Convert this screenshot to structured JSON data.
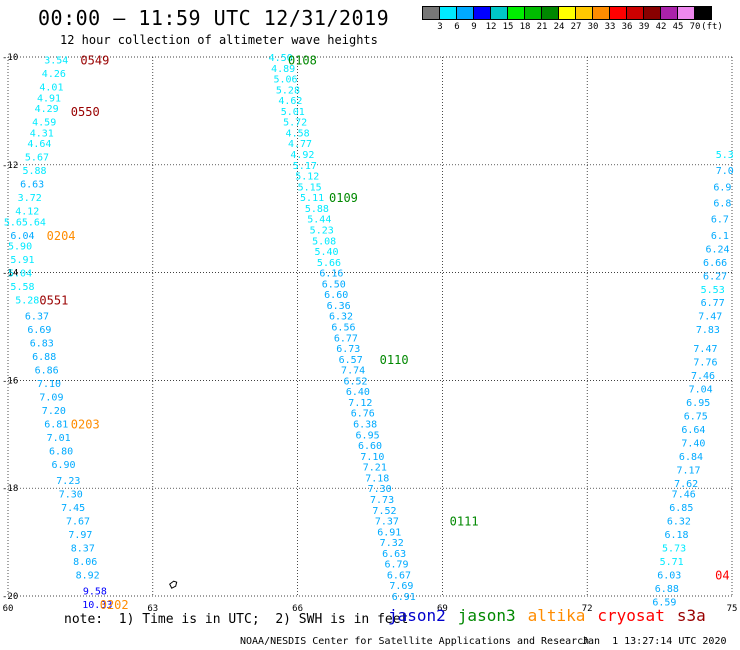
{
  "header": {
    "title": "00:00 – 11:59 UTC 12/31/2019",
    "subtitle": "12 hour collection of altimeter wave heights"
  },
  "colorbar": {
    "colors": [
      "#777777",
      "#00eaff",
      "#00aaff",
      "#0000ff",
      "#00c8c8",
      "#00ee00",
      "#00bb00",
      "#008800",
      "#ffff00",
      "#ffc800",
      "#ff8c00",
      "#ff0000",
      "#cc0000",
      "#880000",
      "#aa22aa",
      "#ee88ee",
      "#000000"
    ],
    "labels": [
      "3",
      "6",
      "9",
      "12",
      "15",
      "18",
      "21",
      "24",
      "27",
      "30",
      "33",
      "36",
      "39",
      "42",
      "45",
      "70",
      "(ft)"
    ]
  },
  "footer": {
    "note": "note:  1) Time is in UTC;  2) SWH is in feet",
    "credit": "NOAA/NESDIS Center for Satellite Applications and Research",
    "timestamp": "Jan  1 13:27:14 UTC 2020",
    "legend": [
      {
        "name": "jason2",
        "color": "#0000cc"
      },
      {
        "name": "jason3",
        "color": "#008800"
      },
      {
        "name": "altika",
        "color": "#ff8c00"
      },
      {
        "name": "cryosat",
        "color": "#ff0000"
      },
      {
        "name": "s3a",
        "color": "#990000"
      }
    ]
  },
  "chart_data": {
    "type": "scatter",
    "xlim": [
      60,
      75
    ],
    "ylim": [
      -20,
      -10
    ],
    "x_ticks": [
      60,
      63,
      66,
      69,
      72,
      75
    ],
    "y_ticks": [
      -10,
      -12,
      -14,
      -16,
      -18,
      -20
    ],
    "x_tick_labels": [
      "60",
      "63",
      "66",
      "69",
      "72",
      "75"
    ],
    "y_tick_labels": [
      "-10",
      "-12",
      "-14",
      "-16",
      "-18",
      "-20"
    ],
    "grid": true,
    "color_scale": {
      "ranges": [
        [
          0,
          3,
          "#777777"
        ],
        [
          3,
          6,
          "#00eaff"
        ],
        [
          6,
          9,
          "#00aaff"
        ],
        [
          9,
          12,
          "#0000ff"
        ],
        [
          12,
          15,
          "#00c8c8"
        ]
      ]
    },
    "tracks": [
      {
        "name": "left descending track",
        "points": [
          {
            "x": 61.0,
            "y": -10.05,
            "v": "3.54"
          },
          {
            "x": 60.95,
            "y": -10.3,
            "v": "4.26"
          },
          {
            "x": 60.9,
            "y": -10.55,
            "v": "4.01"
          },
          {
            "x": 60.85,
            "y": -10.75,
            "v": "4.91"
          },
          {
            "x": 60.8,
            "y": -10.95,
            "v": "4.29"
          },
          {
            "x": 60.75,
            "y": -11.2,
            "v": "4.59"
          },
          {
            "x": 60.7,
            "y": -11.4,
            "v": "4.31"
          },
          {
            "x": 60.65,
            "y": -11.6,
            "v": "4.64"
          },
          {
            "x": 60.6,
            "y": -11.85,
            "v": "5.67"
          },
          {
            "x": 60.55,
            "y": -12.1,
            "v": "5.88"
          },
          {
            "x": 60.5,
            "y": -12.35,
            "v": "6.63"
          },
          {
            "x": 60.45,
            "y": -12.6,
            "v": "3.72"
          },
          {
            "x": 60.4,
            "y": -12.85,
            "v": "4.12"
          },
          {
            "x": 60.35,
            "y": -13.05,
            "v": "5.65.64"
          },
          {
            "x": 60.3,
            "y": -13.3,
            "v": "6.04"
          },
          {
            "x": 60.25,
            "y": -13.5,
            "v": "5.90"
          },
          {
            "x": 60.3,
            "y": -13.75,
            "v": "5.91"
          },
          {
            "x": 60.25,
            "y": -14.0,
            "v": "5.04"
          },
          {
            "x": 60.3,
            "y": -14.25,
            "v": "5.58"
          },
          {
            "x": 60.4,
            "y": -14.5,
            "v": "5.28"
          },
          {
            "x": 60.6,
            "y": -14.8,
            "v": "6.37"
          },
          {
            "x": 60.65,
            "y": -15.05,
            "v": "6.69"
          },
          {
            "x": 60.7,
            "y": -15.3,
            "v": "6.83"
          },
          {
            "x": 60.75,
            "y": -15.55,
            "v": "6.88"
          },
          {
            "x": 60.8,
            "y": -15.8,
            "v": "6.86"
          },
          {
            "x": 60.85,
            "y": -16.05,
            "v": "7.10"
          },
          {
            "x": 60.9,
            "y": -16.3,
            "v": "7.09"
          },
          {
            "x": 60.95,
            "y": -16.55,
            "v": "7.20"
          },
          {
            "x": 61.0,
            "y": -16.8,
            "v": "6.81"
          },
          {
            "x": 61.05,
            "y": -17.05,
            "v": "7.01"
          },
          {
            "x": 61.1,
            "y": -17.3,
            "v": "6.80"
          },
          {
            "x": 61.15,
            "y": -17.55,
            "v": "6.90"
          },
          {
            "x": 61.25,
            "y": -17.85,
            "v": "7.23"
          },
          {
            "x": 61.3,
            "y": -18.1,
            "v": "7.30"
          },
          {
            "x": 61.35,
            "y": -18.35,
            "v": "7.45"
          },
          {
            "x": 61.45,
            "y": -18.6,
            "v": "7.67"
          },
          {
            "x": 61.5,
            "y": -18.85,
            "v": "7.97"
          },
          {
            "x": 61.55,
            "y": -19.1,
            "v": "8.37"
          },
          {
            "x": 61.6,
            "y": -19.35,
            "v": "8.06"
          },
          {
            "x": 61.65,
            "y": -19.6,
            "v": "8.92"
          },
          {
            "x": 61.8,
            "y": -19.9,
            "v": "9.58"
          },
          {
            "x": 61.85,
            "y": -20.15,
            "v": "10.33"
          }
        ]
      },
      {
        "name": "center descending track",
        "points": [
          {
            "x": 65.65,
            "y": -10.0,
            "v": "4.50"
          },
          {
            "x": 65.7,
            "y": -10.2,
            "v": "4.89"
          },
          {
            "x": 65.75,
            "y": -10.4,
            "v": "5.06"
          },
          {
            "x": 65.8,
            "y": -10.6,
            "v": "5.28"
          },
          {
            "x": 65.85,
            "y": -10.8,
            "v": "4.62"
          },
          {
            "x": 65.9,
            "y": -11.0,
            "v": "5.01"
          },
          {
            "x": 65.95,
            "y": -11.2,
            "v": "5.72"
          },
          {
            "x": 66.0,
            "y": -11.4,
            "v": "4.58"
          },
          {
            "x": 66.05,
            "y": -11.6,
            "v": "4.77"
          },
          {
            "x": 66.1,
            "y": -11.8,
            "v": "4.92"
          },
          {
            "x": 66.15,
            "y": -12.0,
            "v": "5.17"
          },
          {
            "x": 66.2,
            "y": -12.2,
            "v": "5.12"
          },
          {
            "x": 66.25,
            "y": -12.4,
            "v": "5.15"
          },
          {
            "x": 66.3,
            "y": -12.6,
            "v": "5.11"
          },
          {
            "x": 66.4,
            "y": -12.8,
            "v": "5.88"
          },
          {
            "x": 66.45,
            "y": -13.0,
            "v": "5.44"
          },
          {
            "x": 66.5,
            "y": -13.2,
            "v": "5.23"
          },
          {
            "x": 66.55,
            "y": -13.4,
            "v": "5.08"
          },
          {
            "x": 66.6,
            "y": -13.6,
            "v": "5.40"
          },
          {
            "x": 66.65,
            "y": -13.8,
            "v": "5.66"
          },
          {
            "x": 66.7,
            "y": -14.0,
            "v": "6.16"
          },
          {
            "x": 66.75,
            "y": -14.2,
            "v": "6.50"
          },
          {
            "x": 66.8,
            "y": -14.4,
            "v": "6.60"
          },
          {
            "x": 66.85,
            "y": -14.6,
            "v": "6.36"
          },
          {
            "x": 66.9,
            "y": -14.8,
            "v": "6.32"
          },
          {
            "x": 66.95,
            "y": -15.0,
            "v": "6.56"
          },
          {
            "x": 67.0,
            "y": -15.2,
            "v": "6.77"
          },
          {
            "x": 67.05,
            "y": -15.4,
            "v": "6.73"
          },
          {
            "x": 67.1,
            "y": -15.6,
            "v": "6.57"
          },
          {
            "x": 67.15,
            "y": -15.8,
            "v": "7.74"
          },
          {
            "x": 67.2,
            "y": -16.0,
            "v": "6.52"
          },
          {
            "x": 67.25,
            "y": -16.2,
            "v": "6.40"
          },
          {
            "x": 67.3,
            "y": -16.4,
            "v": "7.12"
          },
          {
            "x": 67.35,
            "y": -16.6,
            "v": "6.76"
          },
          {
            "x": 67.4,
            "y": -16.8,
            "v": "6.38"
          },
          {
            "x": 67.45,
            "y": -17.0,
            "v": "6.95"
          },
          {
            "x": 67.5,
            "y": -17.2,
            "v": "6.60"
          },
          {
            "x": 67.55,
            "y": -17.4,
            "v": "7.10"
          },
          {
            "x": 67.6,
            "y": -17.6,
            "v": "7.21"
          },
          {
            "x": 67.65,
            "y": -17.8,
            "v": "7.18"
          },
          {
            "x": 67.7,
            "y": -18.0,
            "v": "7.30"
          },
          {
            "x": 67.75,
            "y": -18.2,
            "v": "7.73"
          },
          {
            "x": 67.8,
            "y": -18.4,
            "v": "7.52"
          },
          {
            "x": 67.85,
            "y": -18.6,
            "v": "7.37"
          },
          {
            "x": 67.9,
            "y": -18.8,
            "v": "6.91"
          },
          {
            "x": 67.95,
            "y": -19.0,
            "v": "7.32"
          },
          {
            "x": 68.0,
            "y": -19.2,
            "v": "6.63"
          },
          {
            "x": 68.05,
            "y": -19.4,
            "v": "6.79"
          },
          {
            "x": 68.1,
            "y": -19.6,
            "v": "6.67"
          },
          {
            "x": 68.15,
            "y": -19.8,
            "v": "7.69"
          },
          {
            "x": 68.2,
            "y": -20.0,
            "v": "6.91"
          }
        ]
      },
      {
        "name": "right edge track",
        "points": [
          {
            "x": 74.85,
            "y": -11.8,
            "v": "5.3"
          },
          {
            "x": 74.85,
            "y": -12.1,
            "v": "7.0"
          },
          {
            "x": 74.8,
            "y": -12.4,
            "v": "6.9"
          },
          {
            "x": 74.8,
            "y": -12.7,
            "v": "6.8"
          },
          {
            "x": 74.75,
            "y": -13.0,
            "v": "6.7"
          },
          {
            "x": 74.75,
            "y": -13.3,
            "v": "6.1"
          },
          {
            "x": 74.7,
            "y": -13.55,
            "v": "6.24"
          },
          {
            "x": 74.65,
            "y": -13.8,
            "v": "6.66"
          },
          {
            "x": 74.65,
            "y": -14.05,
            "v": "6.27"
          },
          {
            "x": 74.6,
            "y": -14.3,
            "v": "5.53"
          },
          {
            "x": 74.6,
            "y": -14.55,
            "v": "6.77"
          },
          {
            "x": 74.55,
            "y": -14.8,
            "v": "7.47"
          },
          {
            "x": 74.5,
            "y": -15.05,
            "v": "7.83"
          },
          {
            "x": 74.45,
            "y": -15.4,
            "v": "7.47"
          },
          {
            "x": 74.45,
            "y": -15.65,
            "v": "7.76"
          },
          {
            "x": 74.4,
            "y": -15.9,
            "v": "7.46"
          },
          {
            "x": 74.35,
            "y": -16.15,
            "v": "7.04"
          },
          {
            "x": 74.3,
            "y": -16.4,
            "v": "6.95"
          },
          {
            "x": 74.25,
            "y": -16.65,
            "v": "6.75"
          },
          {
            "x": 74.2,
            "y": -16.9,
            "v": "6.64"
          },
          {
            "x": 74.2,
            "y": -17.15,
            "v": "7.40"
          },
          {
            "x": 74.15,
            "y": -17.4,
            "v": "6.84"
          },
          {
            "x": 74.1,
            "y": -17.65,
            "v": "7.17"
          },
          {
            "x": 74.05,
            "y": -17.9,
            "v": "7.62"
          },
          {
            "x": 74.0,
            "y": -18.1,
            "v": "7.46"
          },
          {
            "x": 73.95,
            "y": -18.35,
            "v": "6.85"
          },
          {
            "x": 73.9,
            "y": -18.6,
            "v": "6.32"
          },
          {
            "x": 73.85,
            "y": -18.85,
            "v": "6.18"
          },
          {
            "x": 73.8,
            "y": -19.1,
            "v": "5.73"
          },
          {
            "x": 73.75,
            "y": -19.35,
            "v": "5.71"
          },
          {
            "x": 73.7,
            "y": -19.6,
            "v": "6.03"
          },
          {
            "x": 73.65,
            "y": -19.85,
            "v": "6.88"
          },
          {
            "x": 73.6,
            "y": -20.1,
            "v": "6.59"
          }
        ]
      }
    ],
    "time_labels": [
      {
        "x": 61.8,
        "y": -10.05,
        "text": "0549",
        "satellite": "s3a",
        "color": "#990000"
      },
      {
        "x": 61.6,
        "y": -11.0,
        "text": "0550",
        "satellite": "s3a",
        "color": "#990000"
      },
      {
        "x": 61.1,
        "y": -13.3,
        "text": "0204",
        "satellite": "altika",
        "color": "#ff8c00"
      },
      {
        "x": 60.95,
        "y": -14.5,
        "text": "0551",
        "satellite": "s3a",
        "color": "#990000"
      },
      {
        "x": 61.6,
        "y": -16.8,
        "text": "0203",
        "satellite": "altika",
        "color": "#ff8c00"
      },
      {
        "x": 62.2,
        "y": -20.15,
        "text": "0202",
        "satellite": "altika",
        "color": "#ff8c00"
      },
      {
        "x": 66.1,
        "y": -10.05,
        "text": "0108",
        "satellite": "jason3",
        "color": "#008800"
      },
      {
        "x": 66.95,
        "y": -12.6,
        "text": "0109",
        "satellite": "jason3",
        "color": "#008800"
      },
      {
        "x": 68.0,
        "y": -15.6,
        "text": "0110",
        "satellite": "jason3",
        "color": "#008800"
      },
      {
        "x": 69.45,
        "y": -18.6,
        "text": "0111",
        "satellite": "jason3",
        "color": "#008800"
      },
      {
        "x": 74.8,
        "y": -19.6,
        "text": "04",
        "satellite": "cryosat",
        "color": "#ff0000"
      }
    ]
  }
}
